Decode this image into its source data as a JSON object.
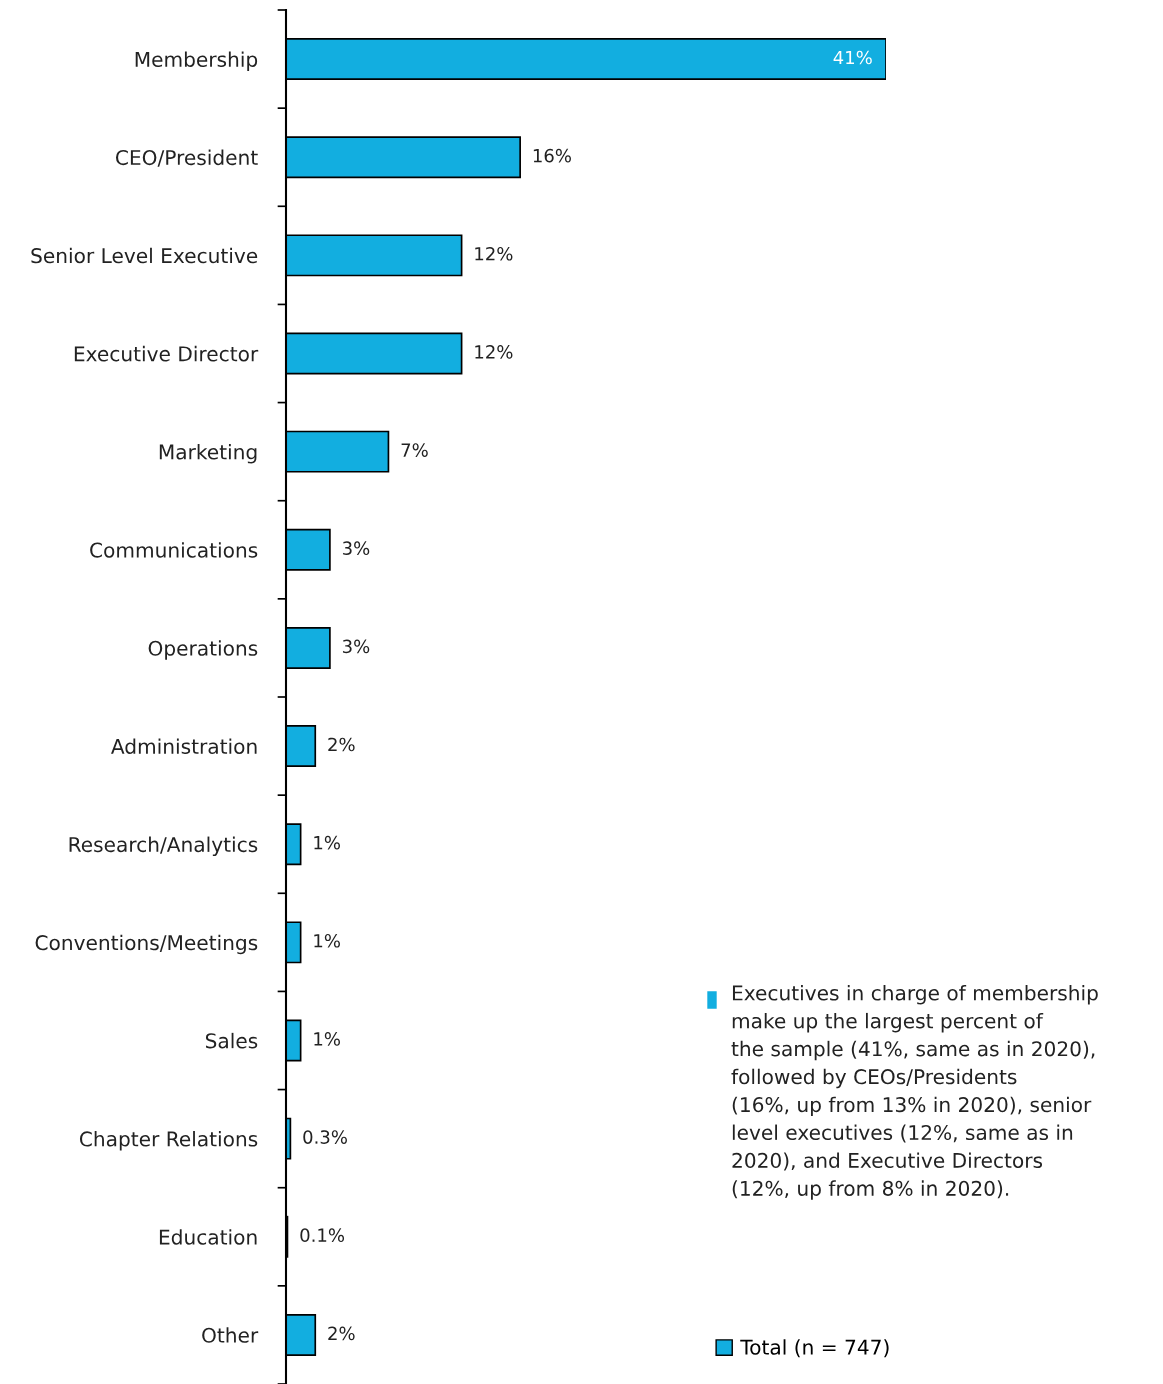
{
  "chart_data": {
    "type": "bar",
    "orientation": "horizontal",
    "categories": [
      "Membership",
      "CEO/President",
      "Senior Level Executive",
      "Executive Director",
      "Marketing",
      "Communications",
      "Operations",
      "Administration",
      "Research/Analytics",
      "Conventions/Meetings",
      "Sales",
      "Chapter Relations",
      "Education",
      "Other"
    ],
    "series": [
      {
        "name": "Total (n = 747)",
        "color": "#12aee0",
        "values": [
          41,
          16,
          12,
          12,
          7,
          3,
          3,
          2,
          1,
          1,
          1,
          0.3,
          0.1,
          2
        ],
        "value_labels": [
          "41%",
          "16%",
          "12%",
          "12%",
          "7%",
          "3%",
          "3%",
          "2%",
          "1%",
          "1%",
          "1%",
          "0.3%",
          "0.1%",
          "2%"
        ]
      }
    ],
    "tick_labels": "y",
    "grid": false,
    "legend": "bottom right",
    "annotations": [
      "Executives in charge of membership\nmake up the largest percent of\nthe sample (41%, same as in 2020),\nfollowed by CEOs/Presidents\n(16%, up from 13% in 2020), senior\nlevel executives (12%, same as in\n2020), and Executive Directors\n(12%, up from 8% in 2020)."
    ]
  }
}
